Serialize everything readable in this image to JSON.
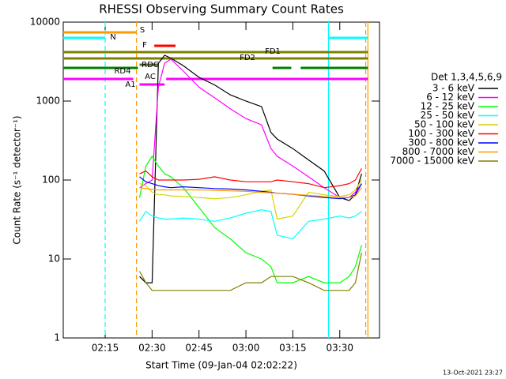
{
  "chart_data": {
    "type": "line",
    "title": "RHESSI Observing Summary Count Rates",
    "x_label": "Start Time (09-Jan-04 02:02:22)",
    "y_label": "Count Rate (s⁻¹ detector⁻¹)",
    "legend_title": "Det 1,3,4,5,6,9",
    "footer": "13-Oct-2021 23:27",
    "log_y": true,
    "xlim": [
      1.6,
      102.7
    ],
    "xticks": [
      {
        "value": 15,
        "label": "02:15"
      },
      {
        "value": 30,
        "label": "02:30"
      },
      {
        "value": 45,
        "label": "02:45"
      },
      {
        "value": 60,
        "label": "03:00"
      },
      {
        "value": 75,
        "label": "03:15"
      },
      {
        "value": 90,
        "label": "03:30"
      }
    ],
    "ylim": [
      1,
      10000
    ],
    "yticks": [
      1,
      10,
      100,
      1000,
      10000
    ],
    "x": [
      26,
      28,
      30,
      32,
      34,
      36,
      40,
      45,
      50,
      55,
      60,
      65,
      68,
      70,
      75,
      80,
      85,
      90,
      93,
      95,
      97
    ],
    "series": [
      {
        "name": "3 - 6 keV",
        "color": "#000000",
        "values": [
          6,
          5,
          5,
          3000,
          3800,
          3500,
          2800,
          2000,
          1600,
          1200,
          1000,
          850,
          400,
          330,
          250,
          180,
          130,
          60,
          55,
          65,
          120
        ]
      },
      {
        "name": "6 - 12 keV",
        "color": "#ff00ff",
        "values": [
          80,
          90,
          100,
          1500,
          3000,
          3400,
          2400,
          1500,
          1100,
          800,
          600,
          500,
          250,
          200,
          150,
          110,
          80,
          60,
          60,
          70,
          90
        ]
      },
      {
        "name": "12 - 25 keV",
        "color": "#00ff00",
        "values": [
          60,
          150,
          200,
          150,
          120,
          110,
          80,
          45,
          25,
          18,
          12,
          10,
          8,
          5,
          5,
          6,
          5,
          5,
          6,
          8,
          15
        ]
      },
      {
        "name": "25 - 50 keV",
        "color": "#00ffff",
        "values": [
          30,
          40,
          35,
          33,
          32,
          32,
          33,
          32,
          30,
          33,
          38,
          42,
          40,
          20,
          18,
          30,
          32,
          35,
          33,
          35,
          40
        ]
      },
      {
        "name": "50 - 100 keV",
        "color": "#d4d400",
        "values": [
          90,
          85,
          70,
          65,
          65,
          63,
          62,
          60,
          58,
          60,
          65,
          72,
          75,
          32,
          35,
          70,
          65,
          62,
          65,
          75,
          100
        ]
      },
      {
        "name": "100 - 300 keV",
        "color": "#ff0000",
        "values": [
          120,
          130,
          110,
          100,
          100,
          100,
          100,
          102,
          110,
          100,
          95,
          95,
          95,
          100,
          95,
          90,
          80,
          85,
          90,
          100,
          140
        ]
      },
      {
        "name": "300 - 800 keV",
        "color": "#0000ff",
        "values": [
          110,
          95,
          90,
          85,
          82,
          80,
          82,
          80,
          78,
          77,
          75,
          72,
          70,
          68,
          66,
          63,
          60,
          58,
          60,
          65,
          90
        ]
      },
      {
        "name": "800 - 7000 keV",
        "color": "#ff9900",
        "values": [
          80,
          78,
          76,
          75,
          75,
          75,
          75,
          75,
          74,
          73,
          72,
          70,
          69,
          68,
          66,
          64,
          62,
          60,
          60,
          63,
          80
        ]
      },
      {
        "name": "7000 - 15000 keV",
        "color": "#808000",
        "values": [
          7,
          5,
          4,
          4,
          4,
          4,
          4,
          4,
          4,
          4,
          5,
          5,
          6,
          6,
          6,
          5,
          4,
          4,
          4,
          5,
          12
        ]
      }
    ],
    "flags": [
      {
        "label": "S",
        "color": "#ff9900",
        "segments": [
          [
            1.6,
            24.9
          ]
        ]
      },
      {
        "label": "N",
        "color": "#00ffff",
        "segments": [
          [
            1.6,
            15
          ],
          [
            86.4,
            99
          ]
        ]
      },
      {
        "label": "F",
        "color": "#ff0000",
        "segments": [
          [
            30.7,
            37.5
          ]
        ]
      },
      {
        "label": "FD1",
        "color": "#808000",
        "segments": [
          [
            1.6,
            99
          ]
        ]
      },
      {
        "label": "FD2",
        "color": "#808000",
        "segments": [
          [
            1.6,
            99
          ]
        ]
      },
      {
        "label": "RD4",
        "color": "#008000",
        "segments": [
          [
            1.6,
            25.5
          ],
          [
            68.5,
            74.5
          ],
          [
            77.5,
            99
          ]
        ]
      },
      {
        "label": "RDC",
        "color": "#556b2f",
        "segments": [
          [
            26,
            32
          ]
        ]
      },
      {
        "label": "A1",
        "color": "#ff00ff",
        "segments": [
          [
            1.6,
            24
          ],
          [
            34.5,
            99
          ]
        ]
      },
      {
        "label": "AC",
        "color": "#ff00ff",
        "segments": [
          [
            26,
            34
          ]
        ]
      }
    ],
    "vlines": [
      {
        "x": 15,
        "color": "#00ffff",
        "dashed": true
      },
      {
        "x": 25,
        "color": "#ff9900",
        "dashed": true
      },
      {
        "x": 86.4,
        "color": "#00ffff",
        "dashed": false
      },
      {
        "x": 98.3,
        "color": "#ff9900",
        "dashed": true
      },
      {
        "x": 99,
        "color": "#ff9900",
        "dashed": false
      }
    ]
  }
}
